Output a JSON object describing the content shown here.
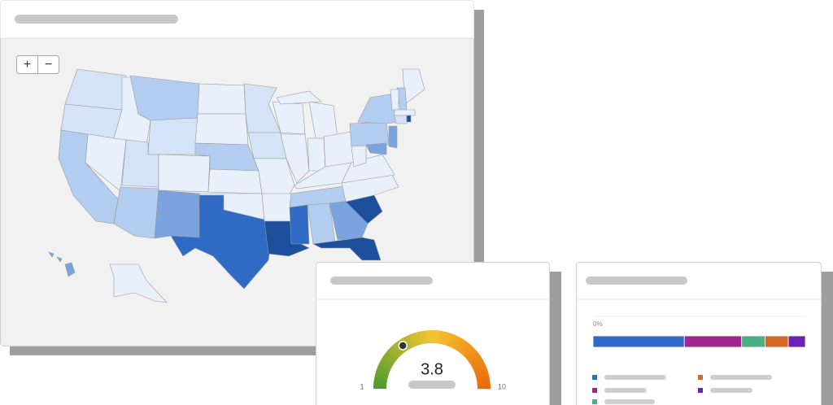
{
  "map": {
    "zoom_in": "+",
    "zoom_out": "−"
  },
  "chart_data": [
    {
      "type": "gauge",
      "value": 3.8,
      "ylim": [
        1,
        10
      ],
      "yticks": [
        1,
        10
      ],
      "colors": [
        "#4a9a2c",
        "#f3c530",
        "#ec6608"
      ]
    },
    {
      "type": "bar",
      "orientation": "horizontal",
      "stacked": true,
      "xlim": [
        0,
        100
      ],
      "xticks": [
        {
          "value": 0,
          "label": "0%"
        }
      ],
      "series": [
        {
          "color": "#2f6bc4",
          "values": [
            43
          ]
        },
        {
          "color": "#a0268f",
          "values": [
            27
          ]
        },
        {
          "color": "#4caf84",
          "values": [
            11
          ]
        },
        {
          "color": "#d2692a",
          "values": [
            11
          ]
        },
        {
          "color": "#6a23b0",
          "values": [
            8
          ]
        }
      ]
    }
  ]
}
